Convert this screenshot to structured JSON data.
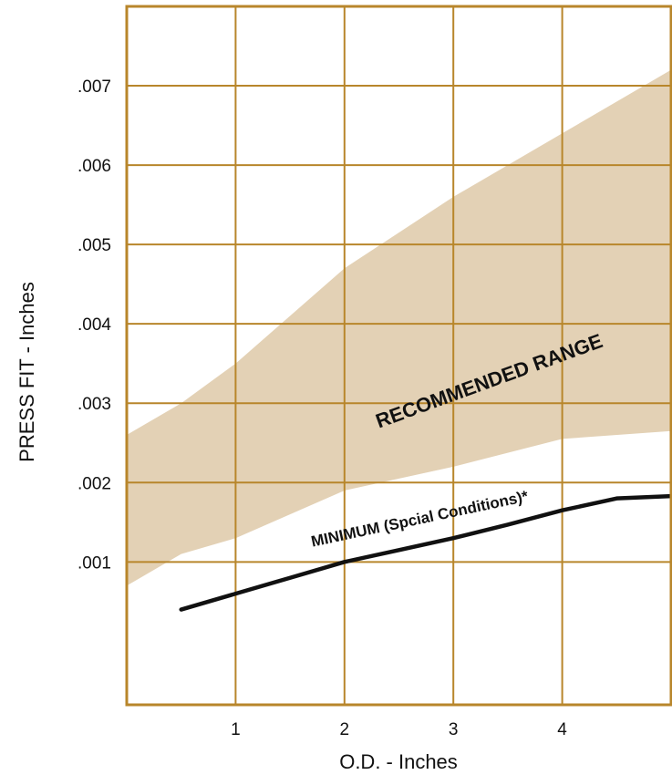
{
  "chart_data": {
    "type": "area",
    "xlabel": "O.D. - Inches",
    "ylabel": "PRESS FIT - Inches",
    "xlim": [
      0,
      5
    ],
    "ylim": [
      -0.0008,
      0.008
    ],
    "x_ticks": [
      1,
      2,
      3,
      4
    ],
    "x_tick_labels": [
      "1",
      "2",
      "3",
      "4"
    ],
    "y_ticks": [
      0.001,
      0.002,
      0.003,
      0.004,
      0.005,
      0.006,
      0.007
    ],
    "y_tick_labels": [
      ".001",
      ".002",
      ".003",
      ".004",
      ".005",
      ".006",
      ".007"
    ],
    "grid": true,
    "series": [
      {
        "role": "band",
        "x": [
          0,
          0.5,
          1,
          2,
          3,
          4,
          5
        ],
        "lower": [
          0.0007,
          0.0011,
          0.0013,
          0.0019,
          0.0022,
          0.00255,
          0.00265
        ],
        "upper": [
          0.0026,
          0.003,
          0.0035,
          0.0047,
          0.0056,
          0.0064,
          0.0072
        ],
        "color": "#e3d1b5"
      },
      {
        "role": "line",
        "x": [
          0.5,
          1,
          1.5,
          2,
          2.5,
          3,
          3.5,
          4,
          4.5,
          5
        ],
        "values": [
          0.0004,
          0.0006,
          0.0008,
          0.001,
          0.00115,
          0.0013,
          0.00147,
          0.00165,
          0.0018,
          0.00183
        ],
        "color": "#111111"
      }
    ],
    "annotations": [
      {
        "text": "RECOMMENDED RANGE",
        "x": 3.35,
        "y": 0.0032,
        "angle": -20
      },
      {
        "text": "MINIMUM (Spcial Conditions)*",
        "x": 2.7,
        "y": 0.00148,
        "angle": -12
      }
    ],
    "colors": {
      "grid": "#b8862b",
      "frame": "#b8862b",
      "band": "#e3d1b5",
      "line": "#111111"
    }
  }
}
